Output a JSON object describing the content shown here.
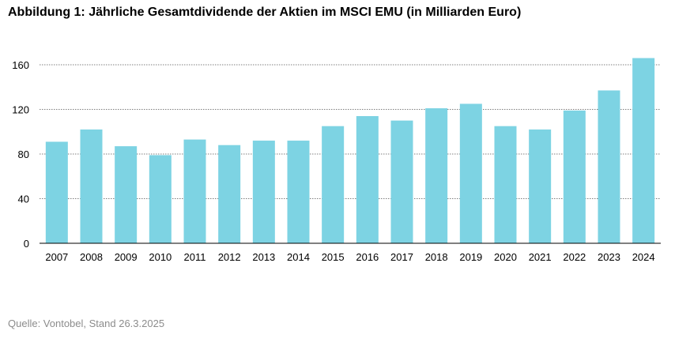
{
  "title": "Abbildung 1: Jährliche Gesamtdividende der Aktien im MSCI EMU (in Milliarden Euro)",
  "source": "Quelle: Vontobel, Stand 26.3.2025",
  "chart_data": {
    "type": "bar",
    "title": "Abbildung 1: Jährliche Gesamtdividende der Aktien im MSCI EMU (in Milliarden Euro)",
    "xlabel": "",
    "ylabel": "",
    "categories": [
      "2007",
      "2008",
      "2009",
      "2010",
      "2011",
      "2012",
      "2013",
      "2014",
      "2015",
      "2016",
      "2017",
      "2018",
      "2019",
      "2020",
      "2021",
      "2022",
      "2023",
      "2024"
    ],
    "values": [
      91,
      102,
      87,
      79,
      93,
      88,
      92,
      92,
      105,
      114,
      110,
      121,
      125,
      105,
      102,
      119,
      137,
      166
    ],
    "ylim": [
      0,
      170
    ],
    "yticks": [
      0,
      40,
      80,
      120,
      160
    ],
    "grid": true,
    "bar_color": "#7dd3e3"
  }
}
